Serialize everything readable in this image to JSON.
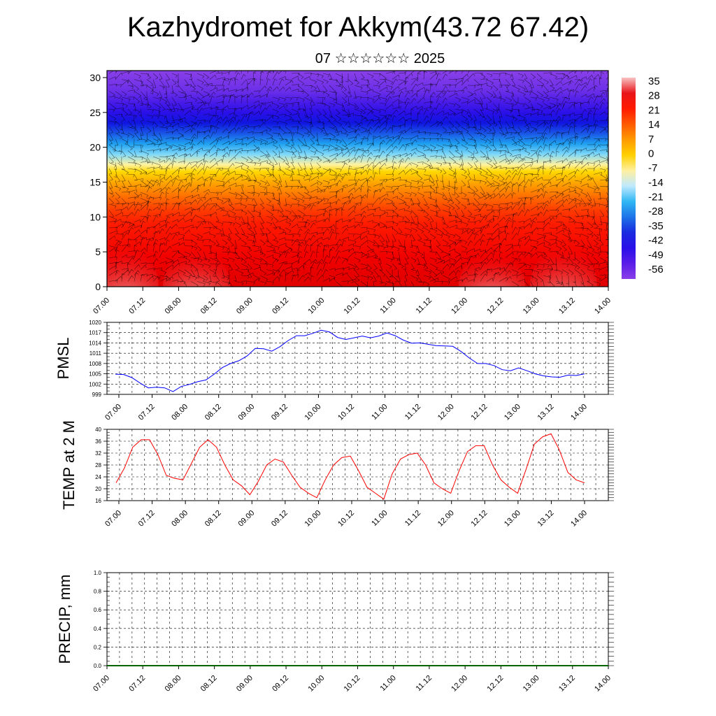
{
  "header": {
    "title": "Kazhydromet for Akkym(43.72 67.42)",
    "subtitle": "07 ☆☆☆☆☆☆ 2025"
  },
  "chart_data": [
    {
      "type": "heatmap",
      "ylim": [
        0,
        31
      ],
      "y_ticks": [
        0,
        5,
        10,
        15,
        20,
        25,
        30
      ],
      "x_ticks": [
        "07.00",
        "07.12",
        "08.00",
        "08.12",
        "09.00",
        "09.12",
        "10.00",
        "10.12",
        "11.00",
        "11.12",
        "12.00",
        "12.12",
        "13.00",
        "13.12",
        "14.00"
      ],
      "colorbar_labels": [
        "35",
        "28",
        "21",
        "14",
        "7",
        "0",
        "-7",
        "-14",
        "-21",
        "-28",
        "-35",
        "-42",
        "-49",
        "-56"
      ],
      "colorbar_colors": [
        "#f8c2c2",
        "#e8141a",
        "#ff1a00",
        "#ff5a00",
        "#ff9a00",
        "#ffd000",
        "#fff0a0",
        "#bfe9ff",
        "#2fb7f4",
        "#1d73e8",
        "#1a2ae0",
        "#2a10e8",
        "#5a1ee8",
        "#8a3ee8"
      ],
      "surface_hot_centers": [
        {
          "time": "07.06",
          "strength": 1.0
        },
        {
          "time": "08.06",
          "strength": 0.9
        },
        {
          "time": "12.09",
          "strength": 0.8
        },
        {
          "time": "13.09",
          "strength": 1.0
        }
      ]
    },
    {
      "type": "line",
      "ylabel": "PMSL",
      "ylim": [
        999,
        1020
      ],
      "y_ticks": [
        999,
        1002,
        1005,
        1008,
        1011,
        1014,
        1017,
        1020
      ],
      "x_ticks": [
        "07.00",
        "07.12",
        "08.00",
        "08.12",
        "09.00",
        "09.12",
        "10.00",
        "10.12",
        "11.00",
        "11.12",
        "12.00",
        "12.12",
        "13.00",
        "13.12",
        "14.00"
      ],
      "series": [
        {
          "color": "#0000ff",
          "values": [
            1004.9,
            1004.8,
            1003.9,
            1002.3,
            1000.9,
            1001.1,
            1000.9,
            999.8,
            1001.3,
            1001.9,
            1002.7,
            1003.2,
            1004.9,
            1006.8,
            1008.0,
            1008.8,
            1010.2,
            1012.4,
            1012.3,
            1011.6,
            1012.9,
            1014.7,
            1016.1,
            1016.1,
            1016.8,
            1017.7,
            1017.2,
            1015.6,
            1015.0,
            1015.5,
            1016.0,
            1015.5,
            1016.0,
            1016.9,
            1016.1,
            1014.8,
            1013.9,
            1014.0,
            1013.6,
            1013.2,
            1013.1,
            1013.0,
            1011.5,
            1009.6,
            1008.0,
            1008.0,
            1007.4,
            1006.2,
            1005.9,
            1006.7,
            1005.9,
            1005.0,
            1004.4,
            1004.1,
            1004.0,
            1004.6,
            1004.5,
            1005.0
          ]
        }
      ]
    },
    {
      "type": "line",
      "ylabel": "TEMP at 2 M",
      "ylim": [
        16,
        40
      ],
      "y_ticks": [
        16,
        20,
        24,
        28,
        32,
        36,
        40
      ],
      "x_ticks": [
        "07.00",
        "07.12",
        "08.00",
        "08.12",
        "09.00",
        "09.12",
        "10.00",
        "10.12",
        "11.00",
        "11.12",
        "12.00",
        "12.12",
        "13.00",
        "13.12",
        "14.00"
      ],
      "series": [
        {
          "color": "#ff0000",
          "values": [
            22.0,
            27.0,
            34.0,
            36.5,
            36.5,
            31.5,
            24.5,
            23.5,
            23.0,
            28.5,
            34.0,
            36.5,
            34.0,
            28.0,
            23.0,
            21.0,
            18.0,
            22.5,
            28.0,
            30.0,
            29.0,
            24.5,
            20.5,
            18.5,
            17.0,
            23.0,
            28.0,
            30.5,
            31.0,
            26.0,
            20.5,
            18.5,
            16.5,
            25.0,
            30.0,
            31.5,
            32.0,
            28.0,
            22.0,
            20.0,
            18.5,
            26.0,
            32.5,
            34.5,
            34.5,
            28.0,
            23.0,
            20.5,
            18.5,
            26.5,
            35.0,
            37.5,
            38.5,
            33.0,
            25.5,
            23.0,
            22.0
          ]
        }
      ]
    },
    {
      "type": "line",
      "ylabel": "PRECIP, mm",
      "ylim": [
        0,
        1
      ],
      "y_ticks": [
        "0.0",
        "0.2",
        "0.4",
        "0.6",
        "0.8",
        "1.0"
      ],
      "x_ticks": [
        "07.00",
        "07.12",
        "08.00",
        "08.12",
        "09.00",
        "09.12",
        "10.00",
        "10.12",
        "11.00",
        "11.12",
        "12.00",
        "12.12",
        "13.00",
        "13.12",
        "14.00"
      ],
      "series": [
        {
          "color": "#006400",
          "values": [
            0,
            0,
            0,
            0,
            0,
            0,
            0,
            0,
            0,
            0,
            0,
            0,
            0,
            0,
            0
          ]
        }
      ]
    }
  ]
}
